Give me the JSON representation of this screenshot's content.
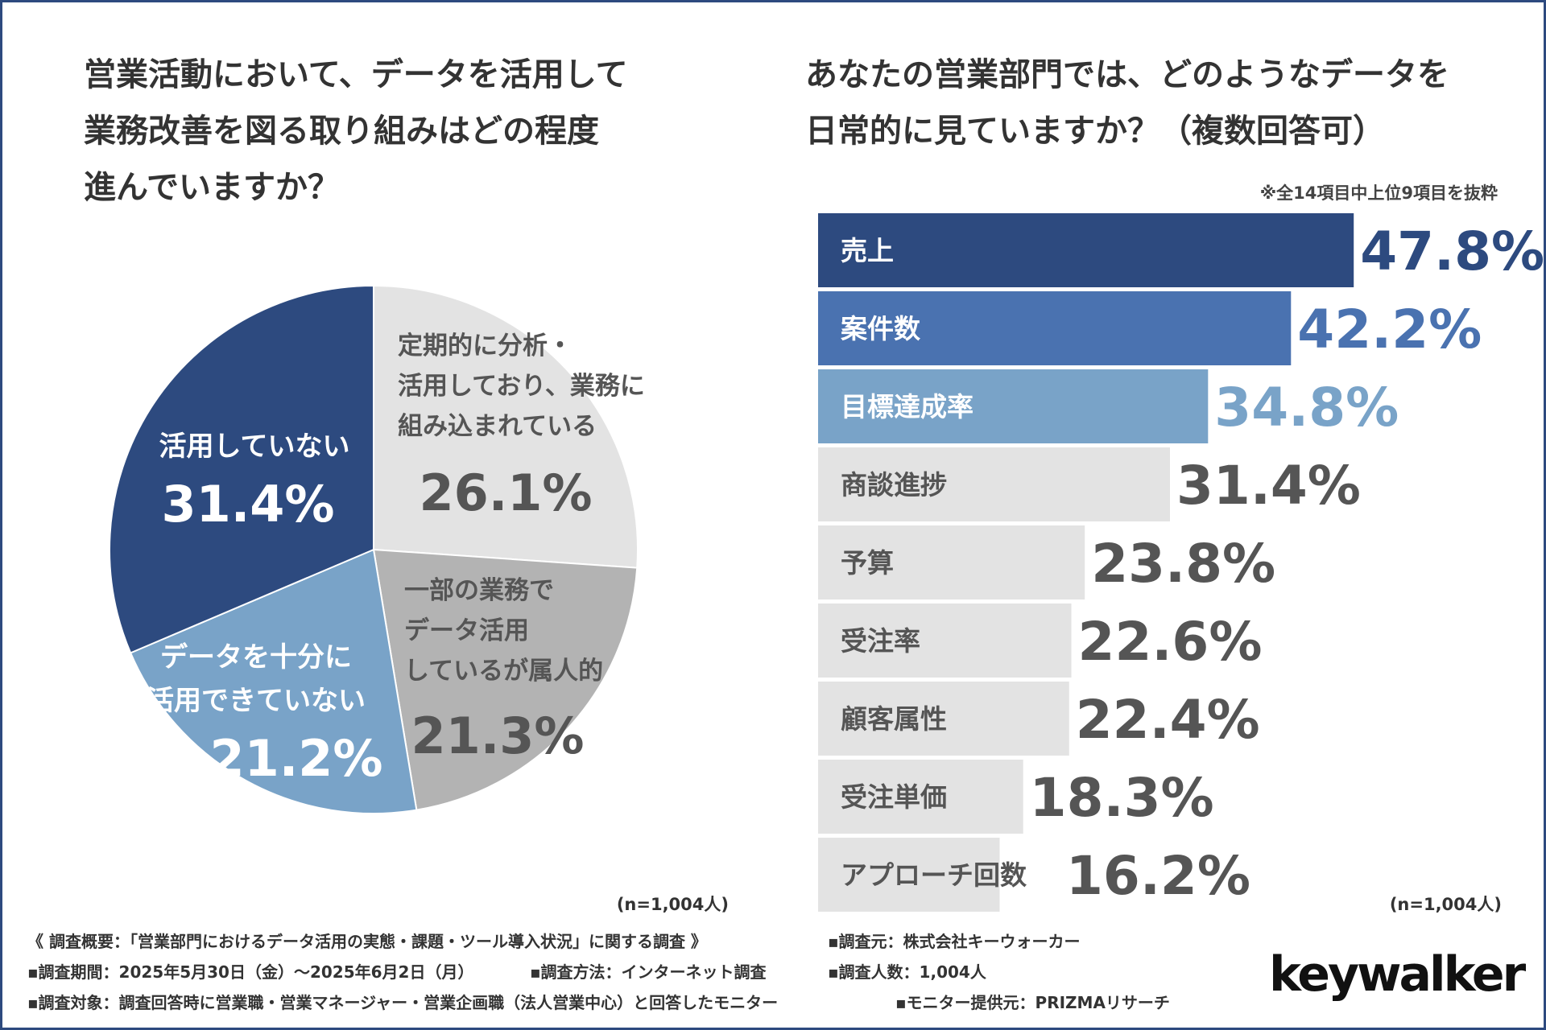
{
  "left": {
    "title_lines": [
      "営業活動において、データを活用して",
      "業務改善を図る取り組みはどの程度",
      "進んでいますか？"
    ],
    "n_label": "(n=1,004人)"
  },
  "right": {
    "title_lines": [
      "あなたの営業部門では、どのようなデータを",
      "日常的に見ていますか？（複数回答可）"
    ],
    "note": "※全14項目中上位9項目を抜粋",
    "n_label": "(n=1,004人)"
  },
  "colors": {
    "navy": "#2d4a7f",
    "blue": "#4a72b0",
    "light_blue": "#79a3c8",
    "light_gray": "#e3e3e3",
    "mid_gray": "#b3b3b3",
    "dark_text": "#555555"
  },
  "chart_data": [
    {
      "type": "pie",
      "title": "営業活動において、データを活用して業務改善を図る取り組みはどの程度進んでいますか？",
      "slices": [
        {
          "label_lines": [
            "定期的に分析・",
            "活用しており、業務に",
            "組み込まれている"
          ],
          "value": 26.1,
          "value_label": "26.1%"
        },
        {
          "label_lines": [
            "一部の業務で",
            "データ活用",
            "しているが属人的"
          ],
          "value": 21.3,
          "value_label": "21.3%"
        },
        {
          "label_lines": [
            "データを十分に",
            "活用できていない"
          ],
          "value": 21.2,
          "value_label": "21.2%"
        },
        {
          "label_lines": [
            "活用していない"
          ],
          "value": 31.4,
          "value_label": "31.4%"
        }
      ],
      "n": "n=1,004人"
    },
    {
      "type": "bar",
      "orientation": "horizontal",
      "title": "あなたの営業部門では、どのようなデータを日常的に見ていますか？（複数回答可）",
      "categories": [
        "売上",
        "案件数",
        "目標達成率",
        "商談進捗",
        "予算",
        "受注率",
        "顧客属性",
        "受注単価",
        "アプローチ回数"
      ],
      "values": [
        47.8,
        42.2,
        34.8,
        31.4,
        23.8,
        22.6,
        22.4,
        18.3,
        16.2
      ],
      "value_labels": [
        "47.8%",
        "42.2%",
        "34.8%",
        "31.4%",
        "23.8%",
        "22.6%",
        "22.4%",
        "18.3%",
        "16.2%"
      ],
      "xlim": [
        0,
        48
      ],
      "n": "n=1,004人"
    }
  ],
  "footer": {
    "survey_summary": "《 調査概要：「営業部門におけるデータ活用の実態・課題・ツール導入状況」に関する調査 》",
    "source": "▪調査元：株式会社キーウォーカー",
    "period": "▪調査期間：2025年5月30日（金）〜2025年6月2日（月）",
    "method": "▪調査方法：インターネット調査",
    "count": "▪調査人数：1,004人",
    "target": "▪調査対象：調査回答時に営業職・営業マネージャー・営業企画職（法人営業中心）と回答したモニター",
    "provider": "▪モニター提供元：PRIZMAリサーチ"
  },
  "logo": "keywalker"
}
